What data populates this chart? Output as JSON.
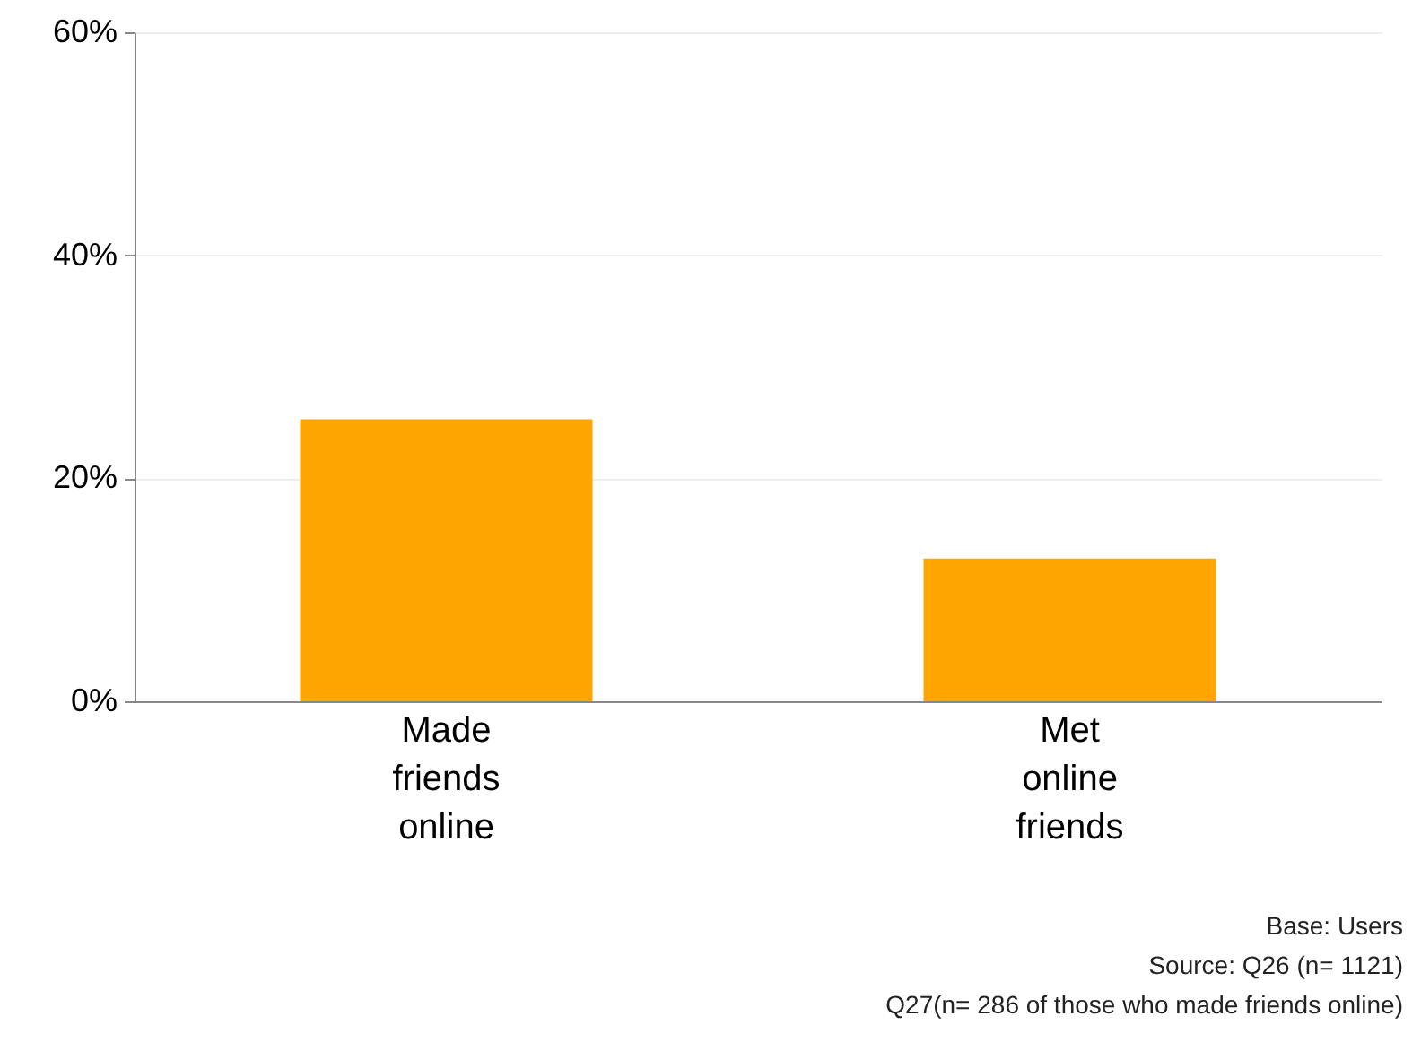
{
  "chart_data": {
    "type": "bar",
    "categories": [
      "Made friends online",
      "Met online friends"
    ],
    "values": [
      25.3,
      12.8
    ],
    "color": "#ffa602",
    "ylim": [
      0,
      60
    ],
    "yticks": [
      {
        "value": 0,
        "label": "0%"
      },
      {
        "value": 20,
        "label": "20%"
      },
      {
        "value": 40,
        "label": "40%"
      },
      {
        "value": 60,
        "label": "60%"
      }
    ],
    "grid": "y",
    "annotations": [
      "Base:  Users",
      "Source: Q26 (n= 1121)",
      "Q27(n= 286 of those who made friends online)"
    ]
  }
}
